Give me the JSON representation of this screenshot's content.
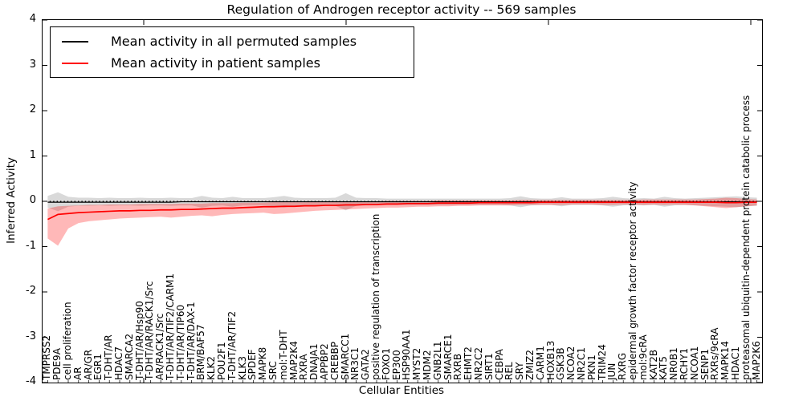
{
  "figure": {
    "title": "Regulation of Androgen receptor activity -- 569 samples",
    "xlabel": "Cellular Entities",
    "ylabel": "Inferred Activity"
  },
  "legend": {
    "items": [
      {
        "label": "Mean activity in all permuted samples",
        "color": "#000000"
      },
      {
        "label": "Mean activity in patient samples",
        "color": "#ff0000"
      }
    ]
  },
  "chart_data": {
    "type": "line",
    "title": "Regulation of Androgen receptor activity -- 569 samples",
    "xlabel": "Cellular Entities",
    "ylabel": "Inferred Activity",
    "ylim": [
      -4,
      4
    ],
    "grid": false,
    "legend_position": "upper left",
    "zero_reference_line": "dotted black at y=0",
    "yticks": [
      {
        "value": 4,
        "label": "4"
      },
      {
        "value": 3,
        "label": "3"
      },
      {
        "value": 2,
        "label": "2"
      },
      {
        "value": 1,
        "label": "1"
      },
      {
        "value": 0,
        "label": "0"
      },
      {
        "value": -1,
        "label": "-1"
      },
      {
        "value": -2,
        "label": "-2"
      },
      {
        "value": -3,
        "label": "-3"
      },
      {
        "value": -4,
        "label": "-4"
      }
    ],
    "categories": [
      "TMPRSS2",
      "PDE9A",
      "cell proliferation",
      "AR",
      "AR/GR",
      "EGR1",
      "T-DHT/AR",
      "HDAC7",
      "SMARCA2",
      "T-DHT/AR/Hsp90",
      "T-DHT/AR/RACK1/Src",
      "AR/RACK1/Src",
      "T-DHT/AR/TIF2/CARM1",
      "T-DHT/AR/TIP60",
      "T-DHT/AR/DAX-1",
      "BRM/BAF57",
      "KLK2",
      "POU2F1",
      "T-DHT/AR/TIF2",
      "KLK3",
      "SPDEF",
      "MAPK8",
      "SRC",
      "mol:T-DHT",
      "MAP2K4",
      "RXRA",
      "DNAJA1",
      "APPBP2",
      "CREBBP",
      "SMARCC1",
      "NR3C1",
      "GATA2",
      "positive regulation of transcription",
      "FOXO1",
      "EP300",
      "HSP90AA1",
      "MYST2",
      "MDM2",
      "GNB2L1",
      "SMARCE1",
      "RXRB",
      "EHMT2",
      "NR2C2",
      "SIRT1",
      "CEBPA",
      "REL",
      "SRY",
      "ZMIZ2",
      "CARM1",
      "HOXB13",
      "GSK3B",
      "NCOA2",
      "NR2C1",
      "PKN1",
      "TRIM24",
      "JUN",
      "RXRG",
      "epidermal growth factor receptor activity",
      "mol:9cRA",
      "KAT2B",
      "KAT5",
      "NR0B1",
      "RCHY1",
      "NCOA1",
      "SENP1",
      "RXRs/9cRA",
      "MAPK14",
      "HDAC1",
      "proteasomal ubiquitin-dependent protein catabolic process",
      "MAP2K6"
    ],
    "series": [
      {
        "name": "Mean activity in all permuted samples",
        "color": "#000000",
        "values": [
          -0.02,
          -0.02,
          -0.02,
          -0.02,
          -0.02,
          -0.02,
          -0.02,
          -0.02,
          -0.02,
          -0.02,
          -0.02,
          -0.02,
          -0.02,
          -0.01,
          -0.01,
          -0.01,
          -0.01,
          -0.01,
          -0.01,
          -0.01,
          -0.01,
          -0.01,
          -0.01,
          -0.01,
          -0.01,
          -0.01,
          -0.01,
          -0.01,
          -0.01,
          -0.01,
          -0.01,
          -0.01,
          -0.01,
          -0.01,
          -0.01,
          -0.01,
          -0.01,
          -0.01,
          -0.01,
          -0.01,
          -0.01,
          -0.01,
          -0.01,
          -0.01,
          -0.01,
          -0.01,
          -0.01,
          -0.01,
          -0.01,
          -0.01,
          -0.01,
          -0.01,
          -0.01,
          -0.01,
          -0.01,
          -0.01,
          -0.01,
          -0.01,
          -0.01,
          -0.01,
          -0.01,
          -0.01,
          -0.01,
          -0.01,
          -0.01,
          -0.01,
          -0.01,
          -0.01,
          -0.01,
          -0.01
        ]
      },
      {
        "name": "Mean activity in patient samples",
        "color": "#ff0000",
        "values": [
          -0.4,
          -0.29,
          -0.27,
          -0.25,
          -0.24,
          -0.23,
          -0.22,
          -0.21,
          -0.21,
          -0.2,
          -0.2,
          -0.19,
          -0.19,
          -0.18,
          -0.18,
          -0.17,
          -0.16,
          -0.15,
          -0.15,
          -0.14,
          -0.13,
          -0.12,
          -0.12,
          -0.11,
          -0.11,
          -0.1,
          -0.1,
          -0.09,
          -0.09,
          -0.08,
          -0.08,
          -0.07,
          -0.07,
          -0.06,
          -0.06,
          -0.05,
          -0.05,
          -0.05,
          -0.04,
          -0.04,
          -0.04,
          -0.04,
          -0.03,
          -0.03,
          -0.03,
          -0.03,
          -0.03,
          -0.03,
          -0.02,
          -0.02,
          -0.02,
          -0.02,
          -0.02,
          -0.02,
          -0.02,
          -0.02,
          -0.02,
          -0.02,
          -0.02,
          -0.02,
          -0.02,
          -0.02,
          -0.02,
          -0.02,
          -0.02,
          -0.02,
          -0.03,
          -0.03,
          -0.02,
          -0.02
        ]
      }
    ],
    "bands": [
      {
        "name": "permuted-range",
        "color": "#000000",
        "opacity": 0.15,
        "upper": [
          0.12,
          0.2,
          0.1,
          0.08,
          0.08,
          0.07,
          0.08,
          0.07,
          0.07,
          0.08,
          0.07,
          0.07,
          0.08,
          0.07,
          0.07,
          0.12,
          0.08,
          0.07,
          0.1,
          0.07,
          0.07,
          0.07,
          0.09,
          0.12,
          0.08,
          0.07,
          0.07,
          0.07,
          0.08,
          0.18,
          0.08,
          0.07,
          0.07,
          0.06,
          0.06,
          0.06,
          0.06,
          0.06,
          0.06,
          0.06,
          0.06,
          0.06,
          0.06,
          0.06,
          0.06,
          0.07,
          0.11,
          0.07,
          0.06,
          0.06,
          0.09,
          0.06,
          0.06,
          0.06,
          0.07,
          0.1,
          0.07,
          0.06,
          0.07,
          0.06,
          0.1,
          0.07,
          0.06,
          0.07,
          0.08,
          0.09,
          0.1,
          0.11,
          0.09,
          0.08
        ],
        "lower": [
          -0.14,
          -0.22,
          -0.12,
          -0.1,
          -0.1,
          -0.09,
          -0.1,
          -0.09,
          -0.09,
          -0.1,
          -0.09,
          -0.09,
          -0.1,
          -0.09,
          -0.09,
          -0.14,
          -0.1,
          -0.09,
          -0.12,
          -0.09,
          -0.09,
          -0.09,
          -0.11,
          -0.14,
          -0.1,
          -0.09,
          -0.09,
          -0.09,
          -0.1,
          -0.2,
          -0.1,
          -0.09,
          -0.09,
          -0.08,
          -0.08,
          -0.08,
          -0.08,
          -0.08,
          -0.08,
          -0.08,
          -0.08,
          -0.08,
          -0.08,
          -0.08,
          -0.08,
          -0.09,
          -0.13,
          -0.09,
          -0.08,
          -0.08,
          -0.11,
          -0.08,
          -0.08,
          -0.08,
          -0.09,
          -0.12,
          -0.09,
          -0.08,
          -0.09,
          -0.08,
          -0.12,
          -0.09,
          -0.08,
          -0.09,
          -0.1,
          -0.11,
          -0.12,
          -0.13,
          -0.11,
          -0.1
        ]
      },
      {
        "name": "patient-range",
        "color": "#ff0000",
        "opacity": 0.28,
        "upper": [
          -0.16,
          -0.11,
          -0.1,
          -0.09,
          -0.08,
          -0.08,
          -0.07,
          -0.07,
          -0.07,
          -0.06,
          -0.06,
          -0.06,
          -0.06,
          -0.05,
          -0.05,
          -0.05,
          -0.04,
          -0.04,
          -0.04,
          -0.03,
          -0.03,
          -0.03,
          -0.02,
          -0.02,
          -0.02,
          -0.02,
          -0.01,
          -0.01,
          -0.01,
          -0.01,
          0.0,
          0.0,
          0.0,
          0.01,
          0.01,
          0.01,
          0.01,
          0.01,
          0.02,
          0.02,
          0.02,
          0.02,
          0.02,
          0.02,
          0.02,
          0.02,
          0.03,
          0.03,
          0.03,
          0.03,
          0.03,
          0.03,
          0.03,
          0.03,
          0.03,
          0.03,
          0.03,
          0.03,
          0.04,
          0.04,
          0.04,
          0.04,
          0.04,
          0.04,
          0.05,
          0.06,
          0.08,
          0.07,
          0.05,
          0.04
        ],
        "lower": [
          -0.82,
          -0.98,
          -0.6,
          -0.48,
          -0.44,
          -0.42,
          -0.4,
          -0.38,
          -0.37,
          -0.36,
          -0.35,
          -0.34,
          -0.36,
          -0.34,
          -0.32,
          -0.31,
          -0.33,
          -0.3,
          -0.28,
          -0.27,
          -0.26,
          -0.25,
          -0.28,
          -0.27,
          -0.25,
          -0.23,
          -0.21,
          -0.2,
          -0.19,
          -0.18,
          -0.17,
          -0.16,
          -0.15,
          -0.14,
          -0.14,
          -0.13,
          -0.12,
          -0.12,
          -0.11,
          -0.11,
          -0.1,
          -0.1,
          -0.09,
          -0.09,
          -0.09,
          -0.09,
          -0.08,
          -0.08,
          -0.08,
          -0.08,
          -0.08,
          -0.07,
          -0.07,
          -0.07,
          -0.08,
          -0.08,
          -0.07,
          -0.07,
          -0.08,
          -0.07,
          -0.08,
          -0.07,
          -0.08,
          -0.09,
          -0.11,
          -0.13,
          -0.15,
          -0.13,
          -0.11,
          -0.09
        ]
      }
    ]
  }
}
